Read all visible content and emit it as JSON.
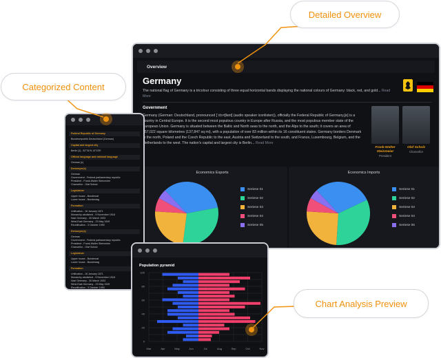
{
  "callouts": {
    "detailed_overview": "Detailed Overview",
    "categorized_content": "Categorized Content",
    "chart_analysis_preview": "Chart Analysis Preview"
  },
  "overview": {
    "header": "Overview",
    "country": "Germany",
    "lead": "The national flag of Germany is a tricolour consisting of three equal horizontal bands displaying the national colours of Germany: black, red, and gold...",
    "lead_more": "Read More",
    "government_heading": "Government",
    "government_text": "Germany (German: Deutschland, pronounced [ˈdɔʏtʃlant] (audio speaker iconlisten)), officially the Federal Republic of Germany,[e] is a country in Central Europe. It is the second most populous country in Europe after Russia, and the most populous member state of the European Union. Germany is situated between the Baltic and North seas to the north, and the Alps to the south; it covers an area of 357,022 square kilometres (137,847 sq mi), with a population of over 83 million within its 16 constituent states. Germany borders Denmark to the north, Poland and the Czech Republic to the east, Austria and Switzerland to the south, and France, Luxembourg, Belgium, and the Netherlands to the west. The nation's capital and largest city is Berlin...",
    "government_more": "Read More",
    "people": [
      {
        "name": "Frank-Walter Steinmeier",
        "role": "President"
      },
      {
        "name": "Olaf Scholz",
        "role": "Chancellor"
      }
    ],
    "flag_colors": [
      "#000000",
      "#dd0000",
      "#ffce00"
    ]
  },
  "exports": {
    "title": "Economics Exports",
    "legend": [
      "Seriese 01",
      "Seriese 02",
      "Seriese 03",
      "Seriese 04",
      "Seriese 05"
    ]
  },
  "imports": {
    "title": "Economics Imports",
    "legend": [
      "Seriese 01",
      "Seriese 02",
      "Seriese 03",
      "Seriese 04",
      "Seriese 05"
    ]
  },
  "series_colors": [
    "#3b8ff0",
    "#2ed39a",
    "#f2b33d",
    "#ef4f78",
    "#8a6ff0"
  ],
  "sidebar": {
    "sections": [
      {
        "title": "Federal Republic of Germany",
        "lines": [
          "Bundesrepublik Deutschland (German)"
        ]
      },
      {
        "title": "Capital and largest city",
        "lines": [
          "Berlin [1] - 52°31′N 13°23′E"
        ]
      },
      {
        "title": "Official language and national language",
        "lines": [
          "German [c]"
        ]
      },
      {
        "title": "Demonym(s)",
        "lines": [
          "German",
          "Government - Federal parliamentary republic",
          "President - Frank-Walter Steinmeier",
          "Chancellor - Olaf Scholz"
        ]
      },
      {
        "title": "Legislature",
        "lines": [
          "Upper house - Bundesrat",
          "Lower house - Bundestag"
        ]
      },
      {
        "title": "Formation",
        "lines": [
          "Unification - 18 January 1871",
          "Monarchy abolished - 9 November 1918",
          "Nazi Germany - 30 March 1933",
          "West-East Germany - 23 May 1949",
          "Reunification - 3 October 1990"
        ]
      },
      {
        "title": "Demonym(s)",
        "lines": [
          "German",
          "Government - Federal parliamentary republic",
          "President - Frank-Walter Steinmeier",
          "Chancellor - Olaf Scholz"
        ]
      },
      {
        "title": "Legislature",
        "lines": [
          "Upper house - Bundesrat",
          "Lower house - Bundestag"
        ]
      },
      {
        "title": "Formation",
        "lines": [
          "Unification - 18 January 1871",
          "Monarchy abolished - 9 November 1918",
          "Nazi Germany - 30 March 1933",
          "West-East Germany - 23 May 1949",
          "Reunification - 3 October 1990"
        ]
      }
    ]
  },
  "pyramid": {
    "title": "Population pyramid",
    "yticks": [
      "100",
      "80",
      "60",
      "40",
      "20",
      "0"
    ],
    "xticks": [
      "Mar",
      "Apr",
      "May",
      "Jun",
      "Jul",
      "Aug",
      "Sep",
      "Oct",
      "Nov"
    ],
    "male_color": "#2f5bf0",
    "female_color": "#ef3f6a"
  },
  "chart_data": [
    {
      "type": "pie",
      "title": "Economics Exports",
      "categories": [
        "Seriese 01",
        "Seriese 02",
        "Seriese 03",
        "Seriese 04",
        "Seriese 05"
      ],
      "values": [
        34,
        30,
        24,
        7,
        5
      ]
    },
    {
      "type": "pie",
      "title": "Economics Imports",
      "categories": [
        "Seriese 01",
        "Seriese 02",
        "Seriese 03",
        "Seriese 04",
        "Seriese 05"
      ],
      "values": [
        30,
        33,
        25,
        7,
        5
      ]
    },
    {
      "type": "bar",
      "title": "Population pyramid",
      "series": [
        {
          "values": [
            -3.5,
            -2,
            -1.5,
            -2.5,
            -3,
            -2,
            -1.5,
            -3.5,
            -2.5,
            -2,
            -3,
            -3,
            -2,
            -4,
            -1.5,
            -2.5,
            -3,
            -1.2,
            -1.5
          ]
        },
        {
          "values": [
            3,
            5,
            4,
            3,
            4.5,
            3,
            3.5,
            3,
            6,
            4.5,
            3,
            3.5,
            5,
            5.5,
            2.5,
            3,
            2,
            1.3,
            1.2
          ]
        }
      ],
      "ylim": [
        0,
        100
      ],
      "xticks": [
        "Mar",
        "Apr",
        "May",
        "Jun",
        "Jul",
        "Aug",
        "Sep",
        "Oct",
        "Nov"
      ]
    }
  ]
}
